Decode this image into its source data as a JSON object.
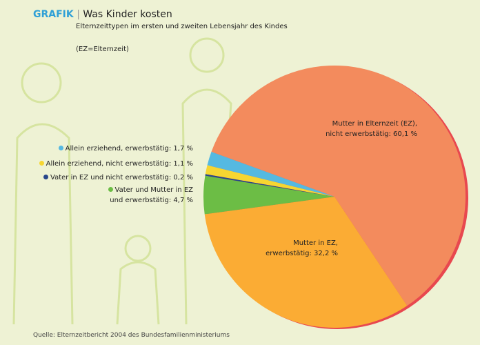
{
  "chart_data": {
    "type": "pie",
    "brand": "GRAFIK",
    "title": "Was Kinder kosten",
    "subtitle": "Elternzeittypen im ersten und zweiten Lebensjahr des Kindes",
    "note": "(EZ=Elternzeit)",
    "source": "Quelle: Elternzeitbericht 2004 des Bundesfamilienministeriums",
    "categories": [
      "Mutter in Elternzeit (EZ),\nnicht erwerbstätig:",
      "Mutter in EZ,\nerwerbstätig:",
      "Vater und Mutter in EZ\nund erwerbstätig:",
      "Vater in EZ und nicht erwerbstätig:",
      "Allein erziehend, nicht erwerbstätig:",
      "Allein erziehend, erwerbstätig:"
    ],
    "values": [
      60.1,
      32.2,
      4.7,
      0.2,
      1.1,
      1.7
    ],
    "value_labels": [
      "60,1 %",
      "32,2 %",
      "4,7 %",
      "0,2 %",
      "1,1 %",
      "1,7 %"
    ],
    "colors": [
      "#f38b5d",
      "#fbac34",
      "#6cbd45",
      "#27468a",
      "#f6d631",
      "#55b9e1"
    ]
  }
}
